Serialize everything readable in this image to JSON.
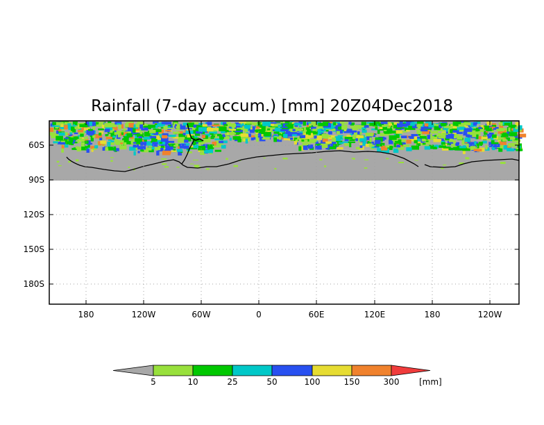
{
  "title": "Rainfall (7-day accum.) [mm] 20Z04Dec2018",
  "x_ticks": [
    "180",
    "120W",
    "60W",
    "0",
    "60E",
    "120E",
    "180",
    "120W"
  ],
  "y_ticks": [
    "60S",
    "90S",
    "120S",
    "150S",
    "180S"
  ],
  "colorbar": {
    "levels": [
      "5",
      "10",
      "25",
      "50",
      "100",
      "150",
      "300"
    ],
    "unit": "[mm]",
    "colors": [
      "#a8a8a8",
      "#98e03c",
      "#00c800",
      "#00c8c8",
      "#2850f0",
      "#e6dc32",
      "#f0822d",
      "#f03c3c"
    ]
  },
  "map_colors": {
    "no_rain": "#a8a8a8",
    "coast": "#000000",
    "grid": "#a0a0a0"
  }
}
